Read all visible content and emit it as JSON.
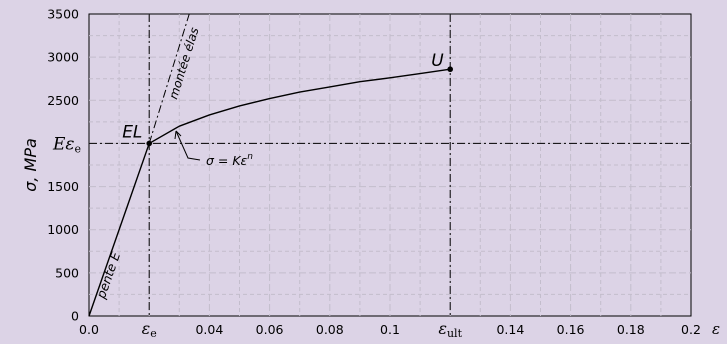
{
  "chart_data": {
    "type": "line",
    "ylabel": "σ, MPa",
    "xlabel": "ε",
    "xlim": [
      0,
      0.2
    ],
    "ylim": [
      0,
      3500
    ],
    "x_ticks": [
      {
        "v": 0.0,
        "label": "0.0"
      },
      {
        "v": 0.04,
        "label": "0.04"
      },
      {
        "v": 0.06,
        "label": "0.06"
      },
      {
        "v": 0.08,
        "label": "0.08"
      },
      {
        "v": 0.1,
        "label": "0.1"
      },
      {
        "v": 0.14,
        "label": "0.14"
      },
      {
        "v": 0.16,
        "label": "0.16"
      },
      {
        "v": 0.18,
        "label": "0.18"
      },
      {
        "v": 0.2,
        "label": "0.2"
      }
    ],
    "x_special_ticks": [
      {
        "v": 0.02,
        "label": "ε",
        "sub": "e"
      },
      {
        "v": 0.12,
        "label": "ε",
        "sub": "ult"
      }
    ],
    "y_ticks": [
      {
        "v": 0,
        "label": "0"
      },
      {
        "v": 500,
        "label": "500"
      },
      {
        "v": 1000,
        "label": "1000"
      },
      {
        "v": 1500,
        "label": "1500"
      },
      {
        "v": 2500,
        "label": "2500"
      },
      {
        "v": 3000,
        "label": "3000"
      },
      {
        "v": 3500,
        "label": "3500"
      }
    ],
    "y_special_tick": {
      "v": 2000,
      "label": "Eε",
      "sub": "e"
    },
    "grid": true,
    "series": [
      {
        "kind": "elastic",
        "x": [
          0,
          0.02
        ],
        "y": [
          0,
          2000
        ]
      },
      {
        "kind": "plastic",
        "x": [
          0.02,
          0.03,
          0.04,
          0.05,
          0.06,
          0.07,
          0.08,
          0.09,
          0.1,
          0.11,
          0.12
        ],
        "y": [
          2000,
          2200,
          2330,
          2435,
          2520,
          2595,
          2655,
          2715,
          2760,
          2810,
          2860
        ]
      }
    ],
    "elastic_extension": {
      "x": [
        0.02,
        0.0333
      ],
      "y": [
        2000,
        3500
      ]
    },
    "points": [
      {
        "label": "EL",
        "x": 0.02,
        "y": 2000
      },
      {
        "label": "U",
        "x": 0.12,
        "y": 2860
      }
    ],
    "annotations": {
      "slope": "pente E",
      "extension": "montée élas",
      "equation": "σ = Kε",
      "equation_exp": "n"
    },
    "colors": {
      "background": "#dcd3e6",
      "grid": "#c3bdcc",
      "line": "#000000"
    }
  }
}
